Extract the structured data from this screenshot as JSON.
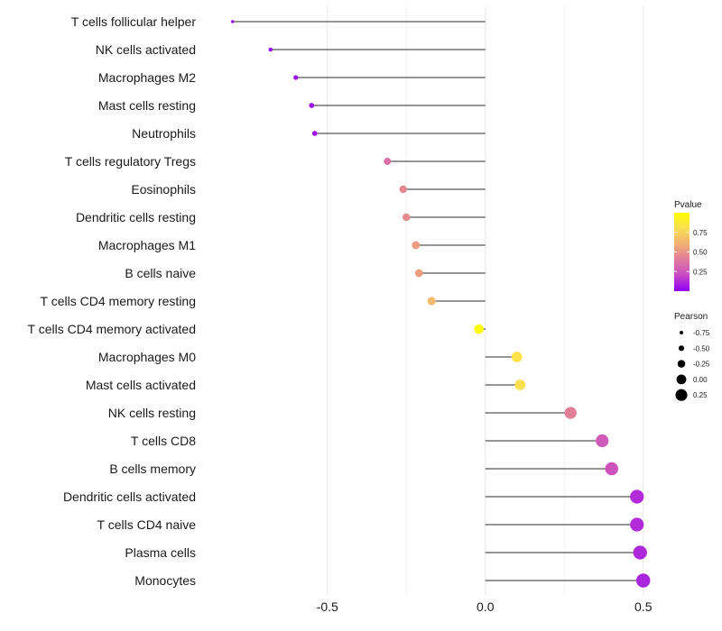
{
  "chart_data": {
    "type": "lollipop",
    "categories": [
      "T cells follicular helper",
      "NK cells activated",
      "Macrophages M2",
      "Mast cells resting",
      "Neutrophils",
      "T cells regulatory  Tregs ",
      "Eosinophils",
      "Dendritic cells resting",
      "Macrophages M1",
      "B cells naive",
      "T cells CD4 memory resting",
      "T cells CD4 memory activated",
      "Macrophages M0",
      "Mast cells activated",
      "NK cells resting",
      "T cells CD8",
      "B cells memory",
      "Dendritic cells activated",
      "T cells CD4 naive",
      "Plasma cells",
      "Monocytes"
    ],
    "pearson": [
      -0.8,
      -0.68,
      -0.6,
      -0.55,
      -0.54,
      -0.31,
      -0.26,
      -0.25,
      -0.22,
      -0.21,
      -0.17,
      -0.02,
      0.1,
      0.11,
      0.27,
      0.37,
      0.4,
      0.48,
      0.48,
      0.49,
      0.5
    ],
    "pvalue": [
      0.02,
      0.04,
      0.05,
      0.06,
      0.07,
      0.35,
      0.45,
      0.46,
      0.53,
      0.54,
      0.65,
      0.98,
      0.82,
      0.81,
      0.42,
      0.27,
      0.24,
      0.12,
      0.12,
      0.11,
      0.1
    ],
    "x_ticks": [
      -0.5,
      0.0,
      0.5
    ],
    "x_tick_labels": [
      "-0.5",
      "0.0",
      "0.5"
    ],
    "xlim": [
      -0.885,
      0.735
    ],
    "xlabel": "",
    "ylabel": "",
    "title": "",
    "grid": true,
    "legend_position": "right",
    "legend_pvalue": {
      "title": "Pvalue",
      "ticks": [
        0.25,
        0.5,
        0.75
      ],
      "tick_labels": [
        "0.25",
        "0.50",
        "0.75"
      ],
      "range": [
        0.0,
        1.0
      ],
      "colors": [
        "#8e00f5",
        "#c848c6",
        "#e07a9c",
        "#f2b074",
        "#fadd52",
        "#ffff00"
      ]
    },
    "legend_pearson": {
      "title": "Pearson",
      "values": [
        -0.75,
        -0.5,
        -0.25,
        0.0,
        0.25
      ],
      "labels": [
        "-0.75",
        "-0.50",
        "-0.25",
        "0.00",
        "0.25"
      ]
    }
  }
}
